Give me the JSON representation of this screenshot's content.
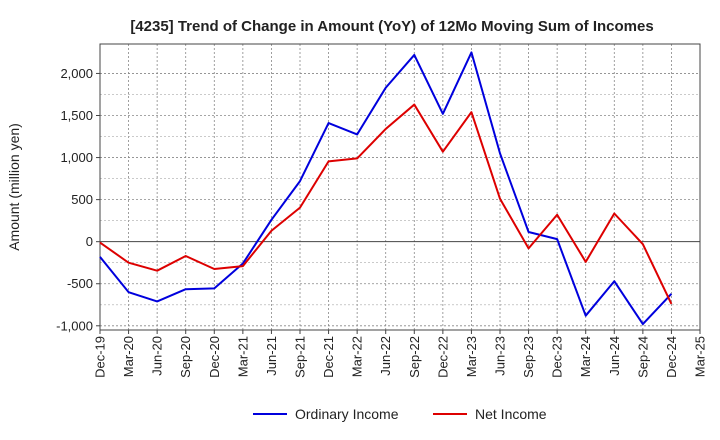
{
  "chart_data": {
    "type": "line",
    "title": "[4235]  Trend of Change in Amount (YoY) of 12Mo Moving Sum of Incomes",
    "xlabel": "",
    "ylabel": "Amount (million yen)",
    "ylim": [
      -1050,
      2350
    ],
    "yticks": [
      -1000,
      -500,
      0,
      500,
      1000,
      1500,
      2000
    ],
    "ytick_labels": [
      "-1,000",
      "-500",
      "0",
      "500",
      "1,000",
      "1,500",
      "2,000"
    ],
    "categories": [
      "Dec-19",
      "Mar-20",
      "Jun-20",
      "Sep-20",
      "Dec-20",
      "Mar-21",
      "Jun-21",
      "Sep-21",
      "Dec-21",
      "Mar-22",
      "Jun-22",
      "Sep-22",
      "Dec-22",
      "Mar-23",
      "Jun-23",
      "Sep-23",
      "Dec-23",
      "Mar-24",
      "Jun-24",
      "Sep-24",
      "Dec-24",
      "Mar-25"
    ],
    "grid": true,
    "legend_position": "bottom-center",
    "series": [
      {
        "name": "Ordinary Income",
        "color": "#0000dd",
        "values": [
          -180,
          -600,
          -710,
          -565,
          -555,
          -260,
          260,
          720,
          1410,
          1275,
          1830,
          2220,
          1520,
          2250,
          1050,
          115,
          30,
          -880,
          -470,
          -980,
          -620,
          null
        ]
      },
      {
        "name": "Net Income",
        "color": "#dd0000",
        "values": [
          -10,
          -250,
          -345,
          -170,
          -325,
          -290,
          130,
          405,
          955,
          990,
          1340,
          1630,
          1070,
          1540,
          510,
          -80,
          320,
          -240,
          335,
          -30,
          -740,
          null
        ]
      }
    ]
  }
}
